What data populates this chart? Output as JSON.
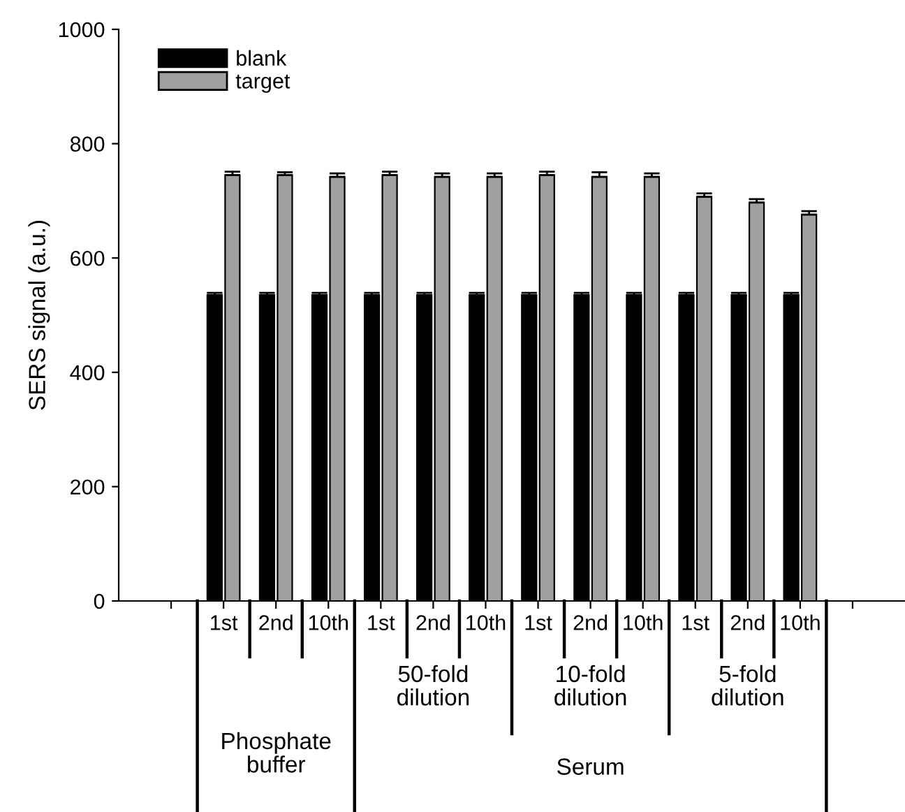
{
  "chart_data": {
    "type": "bar",
    "ylabel": "SERS signal (a.u.)",
    "categories": [
      null,
      "1st",
      "2nd",
      "10th",
      "1st",
      "2nd",
      "10th",
      "1st",
      "2nd",
      "10th",
      "1st",
      "2nd",
      "10th",
      null
    ],
    "series": [
      {
        "name": "blank",
        "color": "#000000",
        "values": [
          null,
          535,
          535,
          535,
          535,
          535,
          535,
          535,
          535,
          535,
          535,
          535,
          535,
          null
        ],
        "errors": [
          null,
          4,
          4,
          4,
          4,
          4,
          4,
          4,
          4,
          4,
          4,
          4,
          4,
          null
        ]
      },
      {
        "name": "target",
        "color": "#a0a0a0",
        "values": [
          null,
          745,
          745,
          742,
          745,
          742,
          742,
          745,
          742,
          742,
          707,
          697,
          676,
          null
        ],
        "errors": [
          null,
          6,
          5,
          6,
          6,
          6,
          6,
          6,
          8,
          6,
          6,
          6,
          6,
          null
        ]
      }
    ],
    "ylim": [
      0,
      1000
    ],
    "yticks": [
      0,
      200,
      400,
      600,
      800,
      1000
    ],
    "annotations": [
      "Phosphate buffer",
      "50-fold dilution",
      "10-fold dilution",
      "5-fold dilution",
      "Serum"
    ],
    "legend": "top left",
    "grid": false
  }
}
